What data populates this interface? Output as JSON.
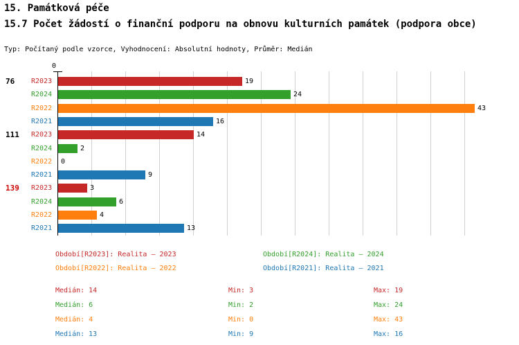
{
  "header": {
    "title_line1": "15. Památková péče",
    "title_line2": "15.7 Počet žádostí o finanční podporu na obnovu kulturních památek (podpora obce)",
    "subtitle": "Typ: Počítaný podle vzorce, Vyhodnocení: Absolutní hodnoty, Průměr: Medián"
  },
  "colors": {
    "R2023": "#c62828",
    "R2024": "#33a02c",
    "R2022": "#ff7f0e",
    "R2021": "#1f77b4",
    "group_label_default": "#000000",
    "group_label_highlight": "#cc0000",
    "axis": "#000000",
    "gridline": "#d0d0d0"
  },
  "chart_data": {
    "type": "bar",
    "orientation": "horizontal",
    "x_axis": {
      "zero_label": "0",
      "min": 0,
      "max": 43,
      "grid": true
    },
    "series_order": [
      "R2023",
      "R2024",
      "R2022",
      "R2021"
    ],
    "groups": [
      {
        "label": "76",
        "highlight": false,
        "bars": [
          {
            "series": "R2023",
            "value": 19
          },
          {
            "series": "R2024",
            "value": 24
          },
          {
            "series": "R2022",
            "value": 43
          },
          {
            "series": "R2021",
            "value": 16
          }
        ]
      },
      {
        "label": "111",
        "highlight": false,
        "bars": [
          {
            "series": "R2023",
            "value": 14
          },
          {
            "series": "R2024",
            "value": 2
          },
          {
            "series": "R2022",
            "value": 0
          },
          {
            "series": "R2021",
            "value": 9
          }
        ]
      },
      {
        "label": "139",
        "highlight": true,
        "bars": [
          {
            "series": "R2023",
            "value": 3
          },
          {
            "series": "R2024",
            "value": 6
          },
          {
            "series": "R2022",
            "value": 4
          },
          {
            "series": "R2021",
            "value": 13
          }
        ]
      }
    ]
  },
  "legend": {
    "items": [
      {
        "series": "R2023",
        "text": "Období[R2023]: Realita – 2023"
      },
      {
        "series": "R2024",
        "text": "Období[R2024]: Realita – 2024"
      },
      {
        "series": "R2022",
        "text": "Období[R2022]: Realita – 2022"
      },
      {
        "series": "R2021",
        "text": "Období[R2021]: Realita – 2021"
      }
    ]
  },
  "stats": {
    "rows": [
      {
        "series": "R2023",
        "median": "Medián: 14",
        "min": "Min: 3",
        "max": "Max: 19"
      },
      {
        "series": "R2024",
        "median": "Medián: 6",
        "min": "Min: 2",
        "max": "Max: 24"
      },
      {
        "series": "R2022",
        "median": "Medián: 4",
        "min": "Min: 0",
        "max": "Max: 43"
      },
      {
        "series": "R2021",
        "median": "Medián: 13",
        "min": "Min: 9",
        "max": "Max: 16"
      }
    ]
  }
}
